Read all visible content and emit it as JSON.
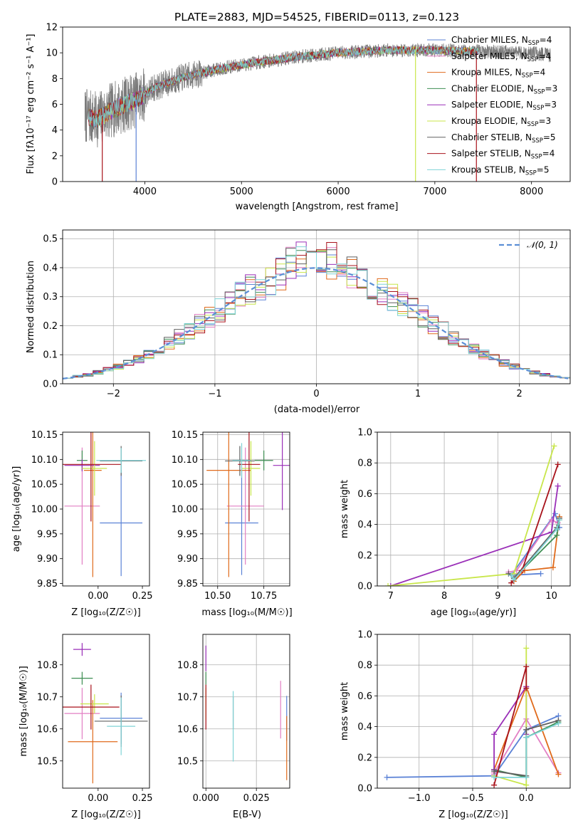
{
  "palette": {
    "Chabrier MILES": "#5b82d6",
    "Salpeter MILES": "#e27fc4",
    "Kroupa MILES": "#e06a1b",
    "Chabrier ELODIE": "#3e8e53",
    "Salpeter ELODIE": "#9a2fb8",
    "Kroupa ELODIE": "#c8e64a",
    "Chabrier STELIB": "#606060",
    "Salpeter STELIB": "#a8121b",
    "Kroupa STELIB": "#7fd3d6",
    "normal_curve": "#5b8fd6",
    "grid": "#b0b0b0"
  },
  "chart_data": [
    {
      "id": "spectrum",
      "type": "line",
      "title": "PLATE=2883, MJD=54525, FIBERID=0113, z=0.123",
      "xlabel": "wavelength [Angstrom, rest frame]",
      "ylabel": "Flux [fλ10⁻¹⁷ erg cm⁻² s⁻¹ A⁻¹]",
      "xlim": [
        3150,
        8400
      ],
      "ylim": [
        0,
        12
      ],
      "xticks": [
        "4000",
        "5000",
        "6000",
        "7000",
        "8000"
      ],
      "yticks": [
        "0",
        "2",
        "4",
        "6",
        "8",
        "10",
        "12"
      ],
      "grid": false,
      "legend_position": "right",
      "legend": [
        {
          "name": "Chabrier MILES",
          "nssp": "4"
        },
        {
          "name": "Salpeter MILES",
          "nssp": "4"
        },
        {
          "name": "Kroupa MILES",
          "nssp": "4"
        },
        {
          "name": "Chabrier ELODIE",
          "nssp": "3"
        },
        {
          "name": "Salpeter ELODIE",
          "nssp": "3"
        },
        {
          "name": "Kroupa ELODIE",
          "nssp": "3"
        },
        {
          "name": "Chabrier STELIB",
          "nssp": "5"
        },
        {
          "name": "Salpeter STELIB",
          "nssp": "4"
        },
        {
          "name": "Kroupa STELIB",
          "nssp": "5"
        }
      ],
      "continuum_knots": [
        [
          3380,
          5.1
        ],
        [
          3500,
          4.8
        ],
        [
          3650,
          5.5
        ],
        [
          3800,
          6.0
        ],
        [
          3950,
          6.5
        ],
        [
          4100,
          7.3
        ],
        [
          4400,
          8.1
        ],
        [
          4800,
          8.8
        ],
        [
          5200,
          9.3
        ],
        [
          5600,
          9.7
        ],
        [
          6000,
          10.0
        ],
        [
          6500,
          10.2
        ],
        [
          7000,
          10.2
        ],
        [
          7500,
          10.1
        ],
        [
          8000,
          10.0
        ],
        [
          8200,
          9.8
        ]
      ],
      "data_range": [
        3380,
        8200
      ],
      "model_range": [
        3420,
        7450
      ],
      "spikes": [
        [
          3560,
          "Salpeter STELIB"
        ],
        [
          3910,
          "Chabrier MILES"
        ],
        [
          6800,
          "Kroupa ELODIE"
        ],
        [
          7430,
          "Salpeter STELIB"
        ]
      ]
    },
    {
      "id": "residuals",
      "type": "line",
      "xlabel": "(data-model)/error",
      "ylabel": "Normed distribution",
      "xlim": [
        -2.5,
        2.5
      ],
      "ylim": [
        0,
        0.53
      ],
      "xticks": [
        "−2",
        "−1",
        "0",
        "1",
        "2"
      ],
      "yticks": [
        "0.0",
        "0.1",
        "0.2",
        "0.3",
        "0.4",
        "0.5"
      ],
      "grid": true,
      "legend_position": "top-right",
      "legend_label": "𝒩(0, 1)",
      "bin_width": 0.1
    },
    {
      "id": "age_vs_Z",
      "type": "scatter",
      "xlabel": "Z [log₁₀(Z/Z☉)]",
      "ylabel": "age  [log₁₀(age/yr)]",
      "xlim": [
        -0.2,
        0.29
      ],
      "ylim": [
        9.845,
        10.155
      ],
      "xticks": [
        "−0.25",
        "0.00",
        "0.25"
      ],
      "yticks": [
        "9.85",
        "9.90",
        "9.95",
        "10.00",
        "10.05",
        "10.10",
        "10.15"
      ],
      "grid": false,
      "points": [
        {
          "model": "Chabrier MILES",
          "x": 0.13,
          "xerr": 0.12,
          "y": 9.972,
          "yerr": 0.107
        },
        {
          "model": "Salpeter MILES",
          "x": -0.09,
          "xerr": 0.1,
          "y": 10.006,
          "yerr": 0.118
        },
        {
          "model": "Kroupa MILES",
          "x": -0.03,
          "xerr": 0.05,
          "y": 10.078,
          "yerr": 0.215
        },
        {
          "model": "Chabrier ELODIE",
          "x": -0.09,
          "xerr": 0.03,
          "y": 10.098,
          "yerr": 0.02
        },
        {
          "model": "Salpeter ELODIE",
          "x": -0.09,
          "xerr": 0.1,
          "y": 10.088,
          "yerr": 0.012
        },
        {
          "model": "Kroupa ELODIE",
          "x": -0.02,
          "xerr": 0.07,
          "y": 10.082,
          "yerr": 0.055
        },
        {
          "model": "Chabrier STELIB",
          "x": 0.13,
          "xerr": 0.12,
          "y": 10.097,
          "yerr": 0.03
        },
        {
          "model": "Salpeter STELIB",
          "x": -0.04,
          "xerr": 0.17,
          "y": 10.09,
          "yerr": 0.115
        },
        {
          "model": "Kroupa STELIB",
          "x": 0.13,
          "xerr": 0.14,
          "y": 10.098,
          "yerr": 0.025
        }
      ]
    },
    {
      "id": "age_vs_mass",
      "type": "scatter",
      "xlabel": "mass [log₁₀(M/M☉)]",
      "ylabel": "",
      "xlim": [
        10.42,
        10.89
      ],
      "ylim": [
        9.845,
        10.155
      ],
      "xticks": [
        "10.50",
        "10.75"
      ],
      "yticks": [
        "9.85",
        "9.90",
        "9.95",
        "10.00",
        "10.05",
        "10.10",
        "10.15"
      ],
      "grid": true,
      "points": [
        {
          "model": "Chabrier MILES",
          "x": 10.63,
          "xerr": 0.09,
          "y": 9.972,
          "yerr": 0.105
        },
        {
          "model": "Salpeter MILES",
          "x": 10.65,
          "xerr": 0.1,
          "y": 10.006,
          "yerr": 0.118
        },
        {
          "model": "Kroupa MILES",
          "x": 10.56,
          "xerr": 0.12,
          "y": 10.078,
          "yerr": 0.215
        },
        {
          "model": "Chabrier ELODIE",
          "x": 10.75,
          "xerr": 0.05,
          "y": 10.098,
          "yerr": 0.02
        },
        {
          "model": "Salpeter ELODIE",
          "x": 10.85,
          "xerr": 0.05,
          "y": 10.088,
          "yerr": 0.09
        },
        {
          "model": "Kroupa ELODIE",
          "x": 10.68,
          "xerr": 0.05,
          "y": 10.082,
          "yerr": 0.055
        },
        {
          "model": "Chabrier STELIB",
          "x": 10.62,
          "xerr": 0.08,
          "y": 10.097,
          "yerr": 0.03
        },
        {
          "model": "Salpeter STELIB",
          "x": 10.67,
          "xerr": 0.06,
          "y": 10.09,
          "yerr": 0.115
        },
        {
          "model": "Kroupa STELIB",
          "x": 10.63,
          "xerr": 0.05,
          "y": 10.098,
          "yerr": 0.035
        }
      ]
    },
    {
      "id": "weight_vs_age",
      "type": "line",
      "xlabel": "age  [log₁₀(age/yr)]",
      "ylabel": "mass weight",
      "xlim": [
        6.75,
        10.35
      ],
      "ylim": [
        0,
        1
      ],
      "xticks": [
        "7",
        "8",
        "9",
        "10"
      ],
      "yticks": [
        "0.0",
        "0.2",
        "0.4",
        "0.6",
        "0.8",
        "1.0"
      ],
      "grid": true,
      "series": [
        {
          "model": "Chabrier MILES",
          "x": [
            9.8,
            9.25,
            10.07,
            10.15
          ],
          "y": [
            0.08,
            0.07,
            0.47,
            0.38
          ]
        },
        {
          "model": "Salpeter MILES",
          "x": [
            9.2,
            9.35,
            10.0,
            10.12
          ],
          "y": [
            0.09,
            0.1,
            0.43,
            0.41
          ]
        },
        {
          "model": "Kroupa MILES",
          "x": [
            9.3,
            9.5,
            10.03,
            10.15
          ],
          "y": [
            0.03,
            0.1,
            0.12,
            0.45
          ]
        },
        {
          "model": "Chabrier ELODIE",
          "x": [
            9.3,
            10.1,
            10.15
          ],
          "y": [
            0.05,
            0.33,
            0.43
          ]
        },
        {
          "model": "Salpeter ELODIE",
          "x": [
            7.0,
            10.0,
            10.12
          ],
          "y": [
            0.0,
            0.35,
            0.65
          ]
        },
        {
          "model": "Kroupa ELODIE",
          "x": [
            6.95,
            9.3,
            10.05
          ],
          "y": [
            0.0,
            0.08,
            0.91
          ]
        },
        {
          "model": "Chabrier STELIB",
          "x": [
            9.2,
            9.3,
            10.1,
            10.15
          ],
          "y": [
            0.08,
            0.05,
            0.38,
            0.44
          ]
        },
        {
          "model": "Salpeter STELIB",
          "x": [
            9.25,
            9.45,
            10.12
          ],
          "y": [
            0.02,
            0.1,
            0.79
          ]
        },
        {
          "model": "Kroupa STELIB",
          "x": [
            9.25,
            9.3,
            10.1,
            10.15
          ],
          "y": [
            0.07,
            0.04,
            0.37,
            0.43
          ]
        }
      ]
    },
    {
      "id": "mass_vs_Z",
      "type": "scatter",
      "xlabel": "Z [log₁₀(Z/Z☉)]",
      "ylabel": "mass [log₁₀(M/M☉)]",
      "xlim": [
        -0.2,
        0.29
      ],
      "ylim": [
        10.415,
        10.895
      ],
      "xticks": [
        "0.00",
        "0.25"
      ],
      "yticks": [
        "10.5",
        "10.6",
        "10.7",
        "10.8"
      ],
      "grid": false,
      "points": [
        {
          "model": "Chabrier MILES",
          "x": 0.13,
          "xerr": 0.12,
          "y": 10.633,
          "yerr": 0.08
        },
        {
          "model": "Salpeter MILES",
          "x": -0.09,
          "xerr": 0.1,
          "y": 10.648,
          "yerr": 0.08
        },
        {
          "model": "Kroupa MILES",
          "x": -0.03,
          "xerr": 0.14,
          "y": 10.56,
          "yerr": 0.13
        },
        {
          "model": "Chabrier ELODIE",
          "x": -0.09,
          "xerr": 0.06,
          "y": 10.758,
          "yerr": 0.02
        },
        {
          "model": "Salpeter ELODIE",
          "x": -0.09,
          "xerr": 0.05,
          "y": 10.848,
          "yerr": 0.02
        },
        {
          "model": "Kroupa ELODIE",
          "x": -0.02,
          "xerr": 0.08,
          "y": 10.678,
          "yerr": 0.03
        },
        {
          "model": "Chabrier STELIB",
          "x": 0.13,
          "xerr": 0.15,
          "y": 10.624,
          "yerr": 0.08
        },
        {
          "model": "Salpeter STELIB",
          "x": -0.04,
          "xerr": 0.16,
          "y": 10.668,
          "yerr": 0.07
        },
        {
          "model": "Kroupa STELIB",
          "x": 0.13,
          "xerr": 0.08,
          "y": 10.608,
          "yerr": 0.09
        }
      ]
    },
    {
      "id": "mass_vs_EBV",
      "type": "scatter",
      "xlabel": "E(B-V)",
      "ylabel": "",
      "xlim": [
        -0.0015,
        0.0415
      ],
      "ylim": [
        10.415,
        10.895
      ],
      "xticks": [
        "0.000",
        "0.025"
      ],
      "yticks": [
        "10.5",
        "10.6",
        "10.7",
        "10.8"
      ],
      "grid": true,
      "points": [
        {
          "model": "Chabrier MILES",
          "x": 0.04,
          "xerr": 0,
          "y": 10.633,
          "yerr": 0.07
        },
        {
          "model": "Salpeter MILES",
          "x": 0.037,
          "xerr": 0,
          "y": 10.66,
          "yerr": 0.09
        },
        {
          "model": "Kroupa MILES",
          "x": 0.04,
          "xerr": 0,
          "y": 10.54,
          "yerr": 0.1
        },
        {
          "model": "Chabrier ELODIE",
          "x": 0.0,
          "xerr": 0,
          "y": 10.758,
          "yerr": 0.02
        },
        {
          "model": "Salpeter ELODIE",
          "x": 0.0,
          "xerr": 0,
          "y": 10.82,
          "yerr": 0.04
        },
        {
          "model": "Kroupa ELODIE",
          "x": 0.0,
          "xerr": 0,
          "y": 10.678,
          "yerr": 0.05
        },
        {
          "model": "Chabrier STELIB",
          "x": 0.0135,
          "xerr": 0,
          "y": 10.65,
          "yerr": 0.05
        },
        {
          "model": "Salpeter STELIB",
          "x": 0.0,
          "xerr": 0,
          "y": 10.668,
          "yerr": 0.07
        },
        {
          "model": "Kroupa STELIB",
          "x": 0.0135,
          "xerr": 0,
          "y": 10.608,
          "yerr": 0.11
        }
      ]
    },
    {
      "id": "weight_vs_Z",
      "type": "line",
      "xlabel": "Z [log₁₀(Z/Z☉)]",
      "ylabel": "mass weight",
      "xlim": [
        -1.39,
        0.41
      ],
      "ylim": [
        0,
        1
      ],
      "xticks": [
        "−1.0",
        "−0.5",
        "0.0"
      ],
      "yticks": [
        "0.0",
        "0.2",
        "0.4",
        "0.6",
        "0.8",
        "1.0"
      ],
      "grid": true,
      "series": [
        {
          "model": "Chabrier MILES",
          "x": [
            -1.3,
            -0.3,
            0.0,
            0.3
          ],
          "y": [
            0.07,
            0.08,
            0.38,
            0.47
          ]
        },
        {
          "model": "Salpeter MILES",
          "x": [
            -0.3,
            -0.3,
            0.0,
            0.3
          ],
          "y": [
            0.09,
            0.1,
            0.45,
            0.1
          ]
        },
        {
          "model": "Kroupa MILES",
          "x": [
            -0.3,
            0.0,
            0.3
          ],
          "y": [
            0.12,
            0.66,
            0.09
          ]
        },
        {
          "model": "Chabrier ELODIE",
          "x": [
            -0.3,
            0.0,
            0.0,
            0.3
          ],
          "y": [
            0.12,
            0.07,
            0.33,
            0.43
          ]
        },
        {
          "model": "Salpeter ELODIE",
          "x": [
            -0.3,
            -0.3,
            0.0,
            0.0
          ],
          "y": [
            0.12,
            0.35,
            0.66,
            0.35
          ]
        },
        {
          "model": "Kroupa ELODIE",
          "x": [
            -0.3,
            0.0,
            0.0
          ],
          "y": [
            0.08,
            0.02,
            0.91
          ]
        },
        {
          "model": "Chabrier STELIB",
          "x": [
            -0.3,
            0.0,
            0.0,
            0.3
          ],
          "y": [
            0.11,
            0.08,
            0.38,
            0.44
          ]
        },
        {
          "model": "Salpeter STELIB",
          "x": [
            -0.3,
            0.0,
            0.0
          ],
          "y": [
            0.02,
            0.79,
            0.65
          ]
        },
        {
          "model": "Kroupa STELIB",
          "x": [
            -0.3,
            0.0,
            0.0,
            0.3
          ],
          "y": [
            0.07,
            0.07,
            0.33,
            0.42
          ]
        }
      ]
    }
  ]
}
